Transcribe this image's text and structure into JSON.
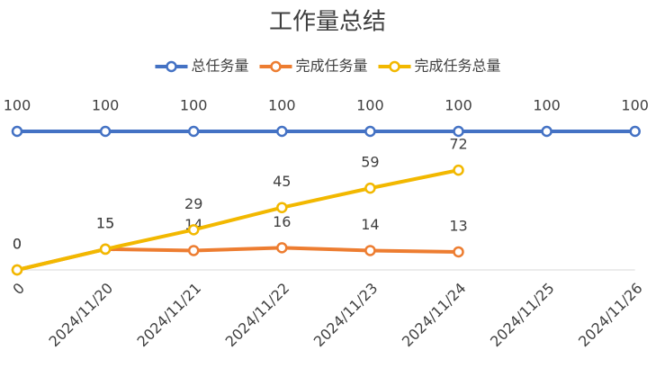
{
  "chart_data": {
    "type": "line",
    "title": "工作量总结",
    "categories": [
      "0",
      "2024/11/20",
      "2024/11/21",
      "2024/11/22",
      "2024/11/23",
      "2024/11/24",
      "2024/11/25",
      "2024/11/26"
    ],
    "series": [
      {
        "name": "总任务量",
        "color": "#4472c4",
        "values": [
          100,
          100,
          100,
          100,
          100,
          100,
          100,
          100
        ]
      },
      {
        "name": "完成任务量",
        "color": "#ed7d31",
        "values": [
          0,
          15,
          14,
          16,
          14,
          13,
          null,
          null
        ]
      },
      {
        "name": "完成任务总量",
        "color": "#f2b800",
        "values": [
          0,
          15,
          29,
          45,
          59,
          72,
          null,
          null
        ]
      }
    ],
    "ylim": [
      0,
      100
    ],
    "legend": "top"
  }
}
